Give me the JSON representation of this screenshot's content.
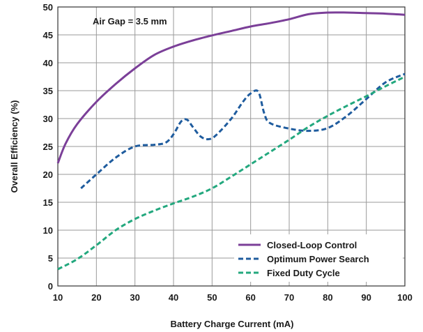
{
  "chart_data": {
    "type": "line",
    "title": "",
    "xlabel": "Battery Charge Current (mA)",
    "ylabel": "Overall Efficiency (%)",
    "xlim": [
      10,
      100
    ],
    "ylim": [
      0,
      50
    ],
    "xticks": [
      10,
      20,
      30,
      40,
      50,
      60,
      70,
      80,
      90,
      100
    ],
    "yticks": [
      0,
      5,
      10,
      15,
      20,
      25,
      30,
      35,
      40,
      45,
      50
    ],
    "grid": true,
    "legend_position": "bottom-right",
    "annotation": "Air Gap = 3.5 mm",
    "series": [
      {
        "name": "Closed-Loop Control",
        "color": "#7b3f98",
        "style": "solid",
        "x": [
          10,
          12,
          15,
          20,
          25,
          30,
          35,
          40,
          45,
          50,
          55,
          60,
          65,
          70,
          75,
          80,
          85,
          90,
          95,
          100
        ],
        "y": [
          22,
          25.5,
          29,
          33,
          36.2,
          39,
          41.4,
          42.9,
          44,
          44.9,
          45.7,
          46.5,
          47.1,
          47.8,
          48.7,
          49,
          49,
          48.9,
          48.8,
          48.6
        ]
      },
      {
        "name": "Optimum Power Search",
        "color": "#1f5c9e",
        "style": "dashed",
        "x": [
          16,
          20,
          25,
          30,
          35,
          38,
          40,
          42,
          43.5,
          45,
          47,
          49,
          51,
          55,
          58,
          60,
          62,
          63.5,
          65,
          70,
          75,
          80,
          85,
          90,
          95,
          100
        ],
        "y": [
          17.5,
          20,
          23,
          25,
          25.3,
          25.7,
          27.2,
          29.5,
          29.8,
          28.5,
          26.8,
          26.3,
          27,
          30,
          33,
          34.5,
          34.8,
          31,
          29.2,
          28.2,
          27.8,
          28.3,
          30.5,
          33.5,
          36.5,
          38
        ]
      },
      {
        "name": "Fixed Duty Cycle",
        "color": "#23a87e",
        "style": "dashed",
        "x": [
          10,
          15,
          20,
          25,
          30,
          35,
          40,
          45,
          50,
          55,
          60,
          65,
          70,
          75,
          80,
          85,
          90,
          95,
          100
        ],
        "y": [
          3,
          4.8,
          7.3,
          10,
          12,
          13.5,
          14.8,
          16,
          17.5,
          19.6,
          21.8,
          24,
          26.2,
          28.5,
          30.5,
          32.3,
          34,
          35.8,
          37.5
        ]
      }
    ]
  }
}
